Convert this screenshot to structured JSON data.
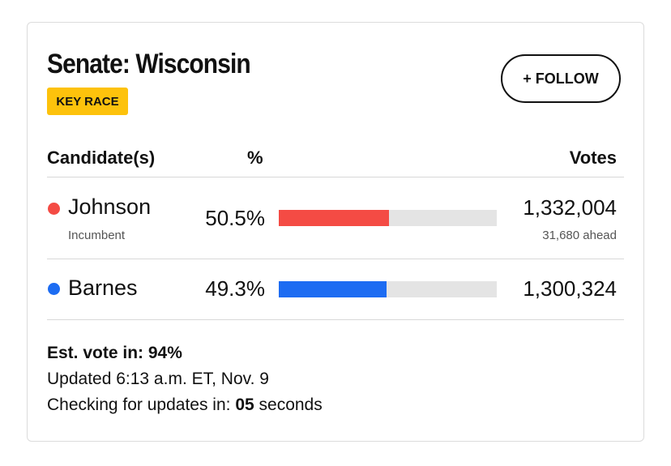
{
  "header": {
    "title": "Senate: Wisconsin",
    "badge": "KEY RACE",
    "follow_button": "+ FOLLOW"
  },
  "table": {
    "columns": [
      "Candidate(s)",
      "%",
      "Votes"
    ],
    "bar_range": [
      0,
      100
    ],
    "rows": [
      {
        "name": "Johnson",
        "note": "Incumbent",
        "color": "#f44b44",
        "pct": 50.5,
        "pct_label": "50.5%",
        "votes": "1,332,004",
        "lead": "31,680 ahead"
      },
      {
        "name": "Barnes",
        "color": "#1d6cf2",
        "pct": 49.3,
        "pct_label": "49.3%",
        "votes": "1,300,324"
      }
    ]
  },
  "footer": {
    "est_label": "Est. vote in:",
    "est_value": "94%",
    "updated": "Updated 6:13 a.m. ET, Nov. 9",
    "checking_label": "Checking for updates in:",
    "countdown": "05",
    "countdown_unit": "seconds"
  }
}
